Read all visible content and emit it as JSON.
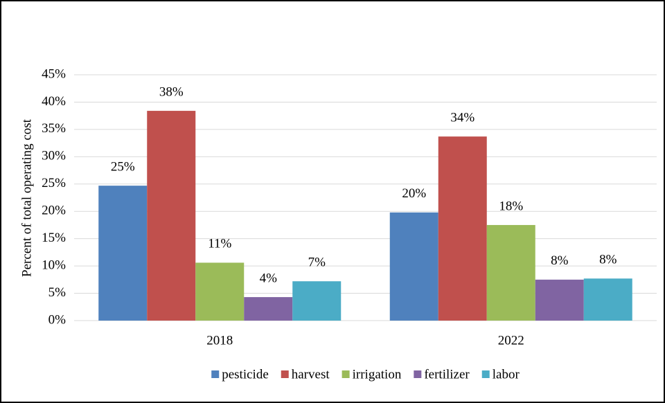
{
  "chart_data": {
    "type": "bar",
    "y_label": "Percent of total operating cost",
    "categories": [
      "2018",
      "2022"
    ],
    "series": [
      {
        "name": "pesticide",
        "color": "#4f81bd",
        "values": [
          24.7,
          19.8
        ],
        "value_labels": [
          "25%",
          "20%"
        ]
      },
      {
        "name": "harvest",
        "color": "#c0504d",
        "values": [
          38.4,
          33.7
        ],
        "value_labels": [
          "38%",
          "34%"
        ]
      },
      {
        "name": "irrigation",
        "color": "#9bbb59",
        "values": [
          10.6,
          17.5
        ],
        "value_labels": [
          "11%",
          "18%"
        ]
      },
      {
        "name": "fertilizer",
        "color": "#8064a2",
        "values": [
          4.3,
          7.5
        ],
        "value_labels": [
          "4%",
          "8%"
        ]
      },
      {
        "name": "labor",
        "color": "#4bacc6",
        "values": [
          7.2,
          7.7
        ],
        "value_labels": [
          "7%",
          "8%"
        ]
      }
    ],
    "ylim": [
      0,
      45
    ],
    "yticks": [
      {
        "value": 0,
        "label": "0%"
      },
      {
        "value": 5,
        "label": "5%"
      },
      {
        "value": 10,
        "label": "10%"
      },
      {
        "value": 15,
        "label": "15%"
      },
      {
        "value": 20,
        "label": "20%"
      },
      {
        "value": 25,
        "label": "25%"
      },
      {
        "value": 30,
        "label": "30%"
      },
      {
        "value": 35,
        "label": "35%"
      },
      {
        "value": 40,
        "label": "40%"
      },
      {
        "value": 45,
        "label": "45%"
      }
    ],
    "grid": true,
    "legend": "bottom"
  }
}
